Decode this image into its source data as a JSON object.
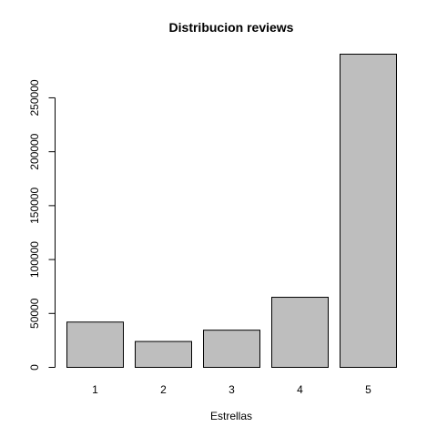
{
  "chart_data": {
    "type": "bar",
    "title": "Distribucion reviews",
    "xlabel": "Estrellas",
    "ylabel": "",
    "categories": [
      "1",
      "2",
      "3",
      "4",
      "5"
    ],
    "values": [
      42000,
      24000,
      34500,
      65000,
      290500
    ],
    "ylim": [
      0,
      290500
    ],
    "yticks": [
      0,
      50000,
      100000,
      150000,
      200000,
      250000
    ],
    "ytick_labels": [
      "0",
      "50000",
      "100000",
      "150000",
      "200000",
      "250000"
    ],
    "bar_color": "#bebebe",
    "grid": false,
    "legend": "none"
  }
}
